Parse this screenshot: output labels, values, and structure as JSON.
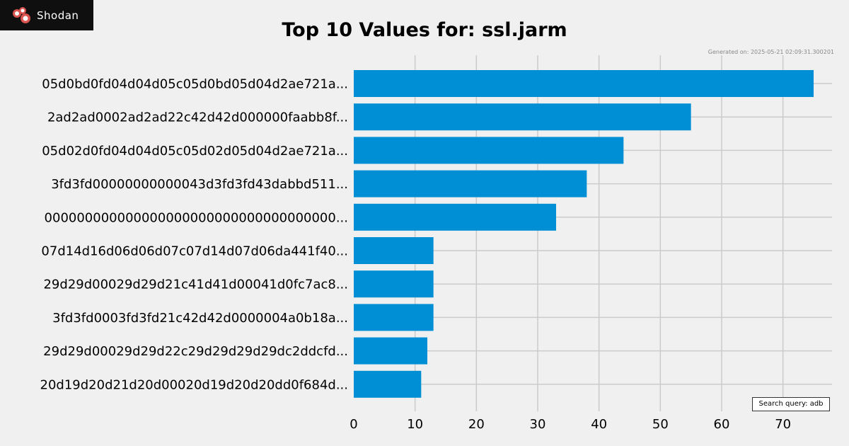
{
  "logo": {
    "text": "Shodan",
    "icon": "shodan-logo-icon"
  },
  "generated_text": "Generated on: 2025-05-21 02:09:31.300201",
  "search_query": "Search query: adb",
  "chart_data": {
    "type": "bar",
    "orientation": "horizontal",
    "title": "Top 10 Values for: ssl.jarm",
    "xlabel": "",
    "ylabel": "",
    "xlim": [
      0,
      78
    ],
    "xticks": [
      0,
      10,
      20,
      30,
      40,
      50,
      60,
      70
    ],
    "grid": true,
    "bar_color": "#008fd5",
    "categories": [
      "05d0bd0fd04d04d05c05d0bd05d04d2ae721a...",
      "2ad2ad0002ad2ad22c42d42d000000faabb8f...",
      "05d02d0fd04d04d05c05d02d05d04d2ae721a...",
      "3fd3fd00000000000043d3fd3fd43dabbd511...",
      "000000000000000000000000000000000000...",
      "07d14d16d06d06d07c07d14d07d06da441f40...",
      "29d29d00029d29d21c41d41d00041d0fc7ac8...",
      "3fd3fd0003fd3fd21c42d42d0000004a0b18a...",
      "29d29d00029d29d22c29d29d29d29dc2ddcfd...",
      "20d19d20d21d20d00020d19d20d20dd0f684d..."
    ],
    "values": [
      75,
      55,
      44,
      38,
      33,
      13,
      13,
      13,
      12,
      11
    ]
  }
}
